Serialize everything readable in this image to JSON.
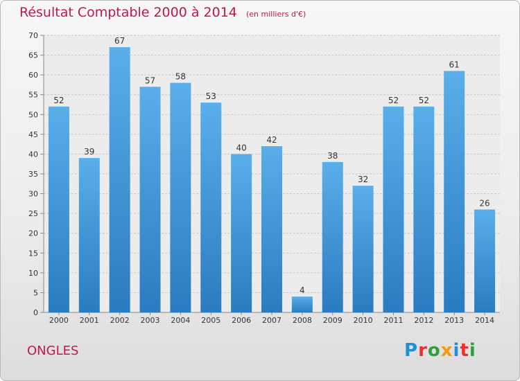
{
  "header": {
    "title": "Résultat Comptable 2000 à 2014",
    "subtitle": "(en milliers d'€)"
  },
  "footer": {
    "town": "ONGLES",
    "logo_letters": [
      {
        "char": "P",
        "color": "#1e90d6"
      },
      {
        "char": "r",
        "color": "#e8322d"
      },
      {
        "char": "o",
        "color": "#2e9f3c"
      },
      {
        "char": "x",
        "color": "#f39c12"
      },
      {
        "char": "i",
        "color": "#1e90d6"
      },
      {
        "char": "t",
        "color": "#e8322d"
      },
      {
        "char": "i",
        "color": "#2e9f3c"
      }
    ]
  },
  "colors": {
    "bar_top": "#5aaeea",
    "bar_bottom": "#2a7cc0",
    "grid": "#c8c8c8",
    "accent": "#c3164f"
  },
  "chart_data": {
    "type": "bar",
    "title": "Résultat Comptable 2000 à 2014",
    "subtitle": "(en milliers d'€)",
    "categories": [
      "2000",
      "2001",
      "2002",
      "2003",
      "2004",
      "2005",
      "2006",
      "2007",
      "2008",
      "2009",
      "2010",
      "2011",
      "2012",
      "2013",
      "2014"
    ],
    "values": [
      52,
      39,
      67,
      57,
      58,
      53,
      40,
      42,
      4,
      38,
      32,
      52,
      52,
      61,
      26
    ],
    "ylim": [
      0,
      70
    ],
    "yticks": [
      0,
      5,
      10,
      15,
      20,
      25,
      30,
      35,
      40,
      45,
      50,
      55,
      60,
      65,
      70
    ],
    "grid": true,
    "data_labels": true
  }
}
